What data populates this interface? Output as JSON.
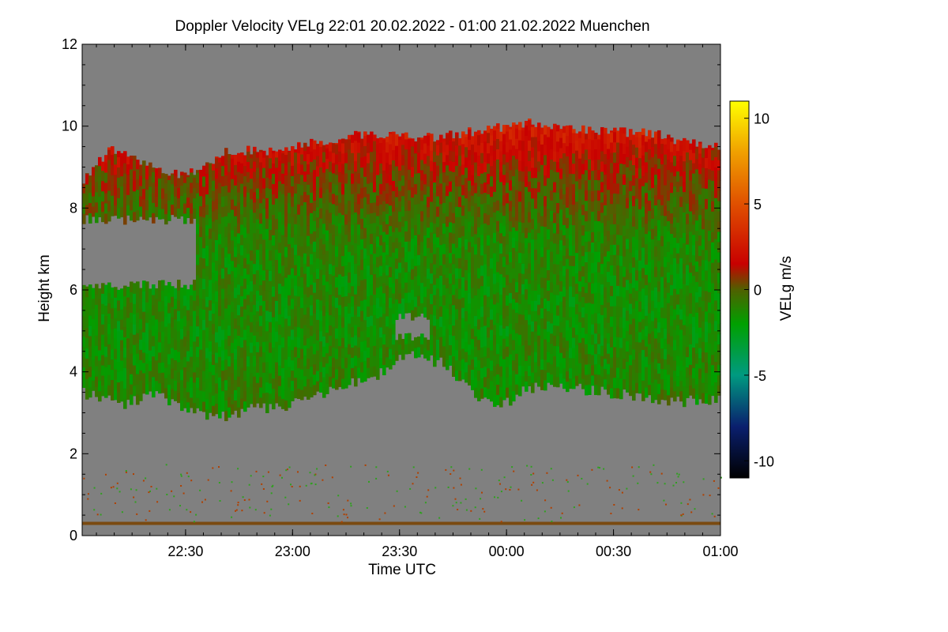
{
  "chart_data": {
    "type": "heatmap",
    "title": "Doppler Velocity VELg   22:01 20.02.2022 - 01:00 21.02.2022 Muenchen",
    "xlabel": "Time UTC",
    "ylabel": "Height km",
    "colorbar_label": "VELg m/s",
    "x_range_hours": [
      22.0167,
      25.0
    ],
    "x_ticks": [
      {
        "label": "22:30",
        "value": 22.5
      },
      {
        "label": "23:00",
        "value": 23.0
      },
      {
        "label": "23:30",
        "value": 23.5
      },
      {
        "label": "00:00",
        "value": 24.0
      },
      {
        "label": "00:30",
        "value": 24.5
      },
      {
        "label": "01:00",
        "value": 25.0
      }
    ],
    "ylim": [
      0,
      12
    ],
    "y_ticks": [
      0,
      2,
      4,
      6,
      8,
      10,
      12
    ],
    "clim": [
      -11,
      11
    ],
    "colorbar_ticks": [
      10,
      5,
      0,
      -5,
      -10
    ],
    "no_data_color": "#808080",
    "colormap": [
      {
        "v": -11,
        "color": "#000000"
      },
      {
        "v": -8,
        "color": "#0a1f6e"
      },
      {
        "v": -5,
        "color": "#009a80"
      },
      {
        "v": -2,
        "color": "#00a000"
      },
      {
        "v": 0,
        "color": "#506000"
      },
      {
        "v": 1.5,
        "color": "#c80000"
      },
      {
        "v": 5,
        "color": "#e05000"
      },
      {
        "v": 8,
        "color": "#f0a000"
      },
      {
        "v": 11,
        "color": "#ffff00"
      }
    ],
    "cloud_top_km": [
      {
        "t": 22.02,
        "h": 8.7
      },
      {
        "t": 22.15,
        "h": 9.4
      },
      {
        "t": 22.3,
        "h": 9.1
      },
      {
        "t": 22.4,
        "h": 8.8
      },
      {
        "t": 22.55,
        "h": 8.9
      },
      {
        "t": 22.7,
        "h": 9.4
      },
      {
        "t": 22.9,
        "h": 9.4
      },
      {
        "t": 23.1,
        "h": 9.6
      },
      {
        "t": 23.3,
        "h": 9.8
      },
      {
        "t": 23.6,
        "h": 9.7
      },
      {
        "t": 23.9,
        "h": 9.9
      },
      {
        "t": 24.1,
        "h": 10.1
      },
      {
        "t": 24.4,
        "h": 9.9
      },
      {
        "t": 24.7,
        "h": 9.8
      },
      {
        "t": 24.85,
        "h": 9.6
      },
      {
        "t": 25.0,
        "h": 9.5
      }
    ],
    "cloud_base_km": [
      {
        "t": 22.02,
        "h": 3.5
      },
      {
        "t": 22.2,
        "h": 3.2
      },
      {
        "t": 22.35,
        "h": 3.5
      },
      {
        "t": 22.5,
        "h": 3.1
      },
      {
        "t": 22.65,
        "h": 2.9
      },
      {
        "t": 22.8,
        "h": 3.1
      },
      {
        "t": 23.0,
        "h": 3.2
      },
      {
        "t": 23.2,
        "h": 3.6
      },
      {
        "t": 23.4,
        "h": 3.9
      },
      {
        "t": 23.55,
        "h": 4.5
      },
      {
        "t": 23.7,
        "h": 4.2
      },
      {
        "t": 23.85,
        "h": 3.5
      },
      {
        "t": 23.95,
        "h": 3.1
      },
      {
        "t": 24.1,
        "h": 3.6
      },
      {
        "t": 24.3,
        "h": 3.6
      },
      {
        "t": 24.6,
        "h": 3.4
      },
      {
        "t": 24.8,
        "h": 3.3
      },
      {
        "t": 25.0,
        "h": 3.3
      }
    ],
    "gap_regions": [
      {
        "t0": 22.02,
        "t1": 22.55,
        "base_km": 6.0,
        "top_km": 7.6
      },
      {
        "t0": 23.48,
        "t1": 23.64,
        "base_km": 4.7,
        "top_km": 5.2
      }
    ],
    "low_level_band_km": 0.3,
    "mean_velocity_profile_ms": [
      {
        "h": 3.0,
        "v": -1.0
      },
      {
        "h": 5.0,
        "v": -1.5
      },
      {
        "h": 7.0,
        "v": -1.2
      },
      {
        "h": 8.5,
        "v": 0.5
      },
      {
        "h": 9.8,
        "v": 2.5
      }
    ]
  }
}
